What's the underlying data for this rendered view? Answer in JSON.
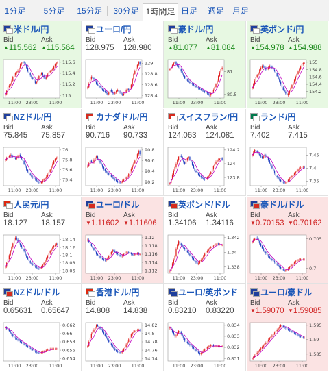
{
  "tabs": [
    {
      "label": "1分足",
      "active": false
    },
    {
      "label": "5分足",
      "active": false
    },
    {
      "label": "15分足",
      "active": false
    },
    {
      "label": "30分足",
      "active": false
    },
    {
      "label": "1時間足",
      "active": true
    },
    {
      "label": "日足",
      "active": false
    },
    {
      "label": "週足",
      "active": false
    },
    {
      "label": "月足",
      "active": false
    }
  ],
  "labels": {
    "bid": "Bid",
    "ask": "Ask"
  },
  "colors": {
    "up_bg": "#e7f8e2",
    "down_bg": "#fbe3e3",
    "up_text": "#1b8a1b",
    "down_text": "#d02424",
    "candle_up": "#e02020",
    "candle_down": "#1f3fc0",
    "ma": "#c000c0",
    "link": "#1a56b8"
  },
  "pairs": [
    {
      "name": "米ドル/円",
      "flag_icons": [
        "us-flag-icon",
        "jp-flag-icon"
      ],
      "flag_colors": [
        "#1f3f9c",
        "#ffffff"
      ],
      "bid": "115.562",
      "ask": "115.564",
      "trend": "up",
      "y_ticks": [
        "115.6",
        "115.4",
        "115.2",
        "115"
      ],
      "x_ticks": [
        "11:00",
        "23:00",
        "11:00"
      ],
      "series": [
        115.02,
        115.08,
        115.15,
        115.18,
        115.2,
        115.26,
        115.33,
        115.36,
        115.4,
        115.42,
        115.45,
        115.5,
        115.56,
        115.58,
        115.6,
        115.59,
        115.55,
        115.5,
        115.44,
        115.4,
        115.36,
        115.32,
        115.3,
        115.26,
        115.22,
        115.24,
        115.3,
        115.35,
        115.38,
        115.4,
        115.36,
        115.32,
        115.3,
        115.34,
        115.38,
        115.42,
        115.44,
        115.46,
        115.48,
        115.52,
        115.56,
        115.58,
        115.6
      ]
    },
    {
      "name": "ユーロ/円",
      "flag_icons": [
        "eu-flag-icon",
        "jp-flag-icon"
      ],
      "flag_colors": [
        "#1f3f9c",
        "#ffffff"
      ],
      "bid": "128.975",
      "ask": "128.980",
      "trend": "none",
      "y_ticks": [
        "129",
        "128.8",
        "128.6",
        "128.4"
      ],
      "x_ticks": [
        "11:00",
        "23:00",
        "11:00"
      ],
      "series": [
        128.55,
        128.62,
        128.7,
        128.75,
        128.72,
        128.7,
        128.66,
        128.62,
        128.6,
        128.57,
        128.55,
        128.52,
        128.5,
        128.48,
        128.46,
        128.44,
        128.42,
        128.45,
        128.5,
        128.47,
        128.44,
        128.43,
        128.45,
        128.48,
        128.5,
        128.47,
        128.45,
        128.42,
        128.41,
        128.43,
        128.46,
        128.5,
        128.52,
        128.5,
        128.54,
        128.6,
        128.7,
        128.8,
        128.86,
        128.92,
        128.97,
        129.02,
        128.98
      ]
    },
    {
      "name": "豪ドル/円",
      "flag_icons": [
        "au-flag-icon",
        "jp-flag-icon"
      ],
      "flag_colors": [
        "#1f3f9c",
        "#ffffff"
      ],
      "bid": "81.077",
      "ask": "81.084",
      "trend": "up",
      "y_ticks": [
        "81",
        "80.5"
      ],
      "x_ticks": [
        "11:00",
        "23:00",
        "11:00"
      ],
      "series": [
        81.05,
        81.1,
        81.14,
        81.18,
        81.2,
        81.16,
        81.12,
        81.1,
        81.05,
        81.0,
        80.95,
        80.9,
        80.85,
        80.82,
        80.8,
        80.78,
        80.75,
        80.74,
        80.72,
        80.7,
        80.68,
        80.66,
        80.65,
        80.63,
        80.62,
        80.6,
        80.58,
        80.57,
        80.55,
        80.54,
        80.52,
        80.5,
        80.48,
        80.52,
        80.56,
        80.6,
        80.66,
        80.72,
        80.8,
        80.9,
        80.98,
        81.05,
        81.08
      ]
    },
    {
      "name": "英ポンド/円",
      "flag_icons": [
        "uk-flag-icon",
        "jp-flag-icon"
      ],
      "flag_colors": [
        "#1f3f9c",
        "#ffffff"
      ],
      "bid": "154.978",
      "ask": "154.988",
      "trend": "up",
      "y_ticks": [
        "155",
        "154.8",
        "154.6",
        "154.4",
        "154.2"
      ],
      "x_ticks": [
        "11:00",
        "23:00",
        "11:00"
      ],
      "series": [
        154.3,
        154.4,
        154.5,
        154.6,
        154.65,
        154.7,
        154.8,
        154.85,
        154.9,
        154.88,
        154.85,
        154.8,
        154.82,
        154.86,
        154.9,
        154.88,
        154.84,
        154.8,
        154.76,
        154.7,
        154.62,
        154.55,
        154.48,
        154.4,
        154.32,
        154.25,
        154.2,
        154.15,
        154.1,
        154.15,
        154.22,
        154.3,
        154.38,
        154.45,
        154.52,
        154.6,
        154.68,
        154.75,
        154.82,
        154.88,
        154.94,
        154.98,
        154.98
      ]
    },
    {
      "name": "NZドル/円",
      "flag_icons": [
        "nz-flag-icon",
        "jp-flag-icon"
      ],
      "flag_colors": [
        "#1f3f9c",
        "#ffffff"
      ],
      "bid": "75.845",
      "ask": "75.857",
      "trend": "none",
      "y_ticks": [
        "76",
        "75.8",
        "75.6",
        "75.4"
      ],
      "x_ticks": [
        "11:00",
        "23:00",
        "11:00"
      ],
      "series": [
        75.8,
        75.84,
        75.86,
        75.88,
        75.9,
        75.88,
        75.86,
        75.84,
        75.82,
        75.85,
        75.88,
        75.9,
        75.86,
        75.82,
        75.78,
        75.72,
        75.66,
        75.6,
        75.56,
        75.52,
        75.5,
        75.46,
        75.44,
        75.42,
        75.4,
        75.38,
        75.36,
        75.34,
        75.33,
        75.35,
        75.38,
        75.4,
        75.43,
        75.46,
        75.5,
        75.55,
        75.6,
        75.66,
        75.72,
        75.78,
        75.82,
        75.84,
        75.85
      ]
    },
    {
      "name": "カナダドル/円",
      "flag_icons": [
        "ca-flag-icon",
        "jp-flag-icon"
      ],
      "flag_colors": [
        "#d52b1e",
        "#ffffff"
      ],
      "bid": "90.716",
      "ask": "90.733",
      "trend": "none",
      "y_ticks": [
        "90.8",
        "90.6",
        "90.4",
        "90.2"
      ],
      "x_ticks": [
        "11:00",
        "23:00",
        "11:00"
      ],
      "series": [
        90.5,
        90.55,
        90.6,
        90.58,
        90.56,
        90.62,
        90.66,
        90.68,
        90.64,
        90.6,
        90.56,
        90.52,
        90.48,
        90.44,
        90.4,
        90.38,
        90.36,
        90.34,
        90.32,
        90.3,
        90.28,
        90.26,
        90.24,
        90.22,
        90.2,
        90.19,
        90.18,
        90.2,
        90.22,
        90.24,
        90.26,
        90.28,
        90.3,
        90.35,
        90.4,
        90.45,
        90.5,
        90.55,
        90.6,
        90.66,
        90.72,
        90.78,
        90.72
      ]
    },
    {
      "name": "スイスフラン/円",
      "flag_icons": [
        "ch-flag-icon",
        "jp-flag-icon"
      ],
      "flag_colors": [
        "#d52b1e",
        "#ffffff"
      ],
      "bid": "124.063",
      "ask": "124.081",
      "trend": "none",
      "y_ticks": [
        "124.2",
        "124",
        "123.8"
      ],
      "x_ticks": [
        "11:00",
        "23:00",
        "11:00"
      ],
      "series": [
        123.72,
        123.78,
        123.84,
        123.9,
        123.95,
        124.0,
        124.05,
        124.1,
        124.12,
        124.1,
        124.06,
        124.02,
        124.0,
        124.05,
        124.08,
        124.1,
        124.06,
        124.02,
        123.98,
        123.94,
        123.9,
        123.88,
        123.86,
        123.84,
        123.82,
        123.8,
        123.79,
        123.78,
        123.77,
        123.78,
        123.8,
        123.82,
        123.85,
        123.88,
        123.92,
        123.96,
        124.0,
        124.03,
        124.05,
        124.06,
        124.07,
        124.08,
        124.06
      ]
    },
    {
      "name": "ランド/円",
      "flag_icons": [
        "za-flag-icon",
        "jp-flag-icon"
      ],
      "flag_colors": [
        "#007a4d",
        "#ffffff"
      ],
      "bid": "7.402",
      "ask": "7.415",
      "trend": "none",
      "y_ticks": [
        "7.45",
        "7.4",
        "7.35"
      ],
      "x_ticks": [
        "11:00",
        "23:00",
        "11:00"
      ],
      "series": [
        7.45,
        7.46,
        7.47,
        7.465,
        7.46,
        7.455,
        7.45,
        7.445,
        7.44,
        7.445,
        7.45,
        7.445,
        7.44,
        7.43,
        7.42,
        7.41,
        7.4,
        7.39,
        7.38,
        7.37,
        7.365,
        7.36,
        7.355,
        7.35,
        7.348,
        7.345,
        7.343,
        7.345,
        7.35,
        7.355,
        7.36,
        7.365,
        7.37,
        7.375,
        7.38,
        7.385,
        7.39,
        7.395,
        7.4,
        7.402,
        7.404,
        7.405,
        7.402
      ]
    },
    {
      "name": "人民元/円",
      "flag_icons": [
        "cn-flag-icon",
        "jp-flag-icon"
      ],
      "flag_colors": [
        "#de2910",
        "#ffffff"
      ],
      "bid": "18.127",
      "ask": "18.157",
      "trend": "none",
      "y_ticks": [
        "18.14",
        "18.12",
        "18.1",
        "18.08",
        "18.06"
      ],
      "x_ticks": [
        "11:00",
        "23:00",
        "11:00"
      ],
      "series": [
        18.07,
        18.08,
        18.09,
        18.1,
        18.11,
        18.12,
        18.13,
        18.14,
        18.145,
        18.14,
        18.135,
        18.13,
        18.125,
        18.12,
        18.115,
        18.11,
        18.1,
        18.095,
        18.09,
        18.085,
        18.08,
        18.078,
        18.075,
        18.072,
        18.07,
        18.068,
        18.066,
        18.065,
        18.067,
        18.07,
        18.075,
        18.08,
        18.086,
        18.092,
        18.098,
        18.104,
        18.11,
        18.115,
        18.12,
        18.124,
        18.127,
        18.13,
        18.127
      ]
    },
    {
      "name": "ユーロ/ドル",
      "flag_icons": [
        "eu-flag-icon",
        "us-flag-icon"
      ],
      "flag_colors": [
        "#1f3f9c",
        "#d52b1e"
      ],
      "bid": "1.11602",
      "ask": "1.11606",
      "trend": "down",
      "y_ticks": [
        "1.12",
        "1.118",
        "1.116",
        "1.114",
        "1.112"
      ],
      "x_ticks": [
        "11:00",
        "23:00",
        "11:00"
      ],
      "series": [
        1.1195,
        1.119,
        1.1185,
        1.118,
        1.1175,
        1.117,
        1.1165,
        1.116,
        1.1158,
        1.1155,
        1.1152,
        1.115,
        1.1148,
        1.1146,
        1.1145,
        1.1147,
        1.115,
        1.1155,
        1.116,
        1.1165,
        1.117,
        1.1168,
        1.1165,
        1.1162,
        1.116,
        1.1158,
        1.1156,
        1.1155,
        1.1157,
        1.116,
        1.1162,
        1.1164,
        1.1165,
        1.1164,
        1.1162,
        1.116,
        1.1159,
        1.1158,
        1.116,
        1.1161,
        1.1162,
        1.116,
        1.116
      ]
    },
    {
      "name": "英ポンド/ドル",
      "flag_icons": [
        "uk-flag-icon",
        "us-flag-icon"
      ],
      "flag_colors": [
        "#1f3f9c",
        "#d52b1e"
      ],
      "bid": "1.34106",
      "ask": "1.34116",
      "trend": "none",
      "y_ticks": [
        "1.342",
        "1.34",
        "1.338"
      ],
      "x_ticks": [
        "11:00",
        "23:00",
        "11:00"
      ],
      "series": [
        1.3375,
        1.338,
        1.3385,
        1.339,
        1.3395,
        1.3405,
        1.341,
        1.3415,
        1.3412,
        1.341,
        1.3408,
        1.3406,
        1.3404,
        1.3402,
        1.34,
        1.3398,
        1.3396,
        1.3394,
        1.3392,
        1.339,
        1.3388,
        1.3386,
        1.3384,
        1.3385,
        1.3388,
        1.339,
        1.3392,
        1.3395,
        1.3398,
        1.34,
        1.3402,
        1.3404,
        1.3406,
        1.3407,
        1.3408,
        1.3409,
        1.341,
        1.3411,
        1.3412,
        1.3411,
        1.3411,
        1.341,
        1.341
      ]
    },
    {
      "name": "豪ドル/ドル",
      "flag_icons": [
        "au-flag-icon",
        "us-flag-icon"
      ],
      "flag_colors": [
        "#1f3f9c",
        "#d52b1e"
      ],
      "bid": "0.70153",
      "ask": "0.70162",
      "trend": "down",
      "y_ticks": [
        "0.705",
        "0.7"
      ],
      "x_ticks": [
        "11:00",
        "23:00",
        "11:00"
      ],
      "series": [
        0.7045,
        0.7048,
        0.705,
        0.7052,
        0.705,
        0.7046,
        0.7042,
        0.7038,
        0.7034,
        0.703,
        0.7028,
        0.7025,
        0.7022,
        0.702,
        0.7018,
        0.7016,
        0.7014,
        0.7012,
        0.701,
        0.7008,
        0.7006,
        0.7004,
        0.7002,
        0.7,
        0.6998,
        0.6997,
        0.6996,
        0.6997,
        0.6998,
        0.7,
        0.7002,
        0.7004,
        0.7006,
        0.7008,
        0.701,
        0.7012,
        0.7013,
        0.7014,
        0.7015,
        0.7016,
        0.7015,
        0.7015,
        0.7015
      ]
    },
    {
      "name": "NZドル/ドル",
      "flag_icons": [
        "nz-flag-icon",
        "us-flag-icon"
      ],
      "flag_colors": [
        "#1f3f9c",
        "#d52b1e"
      ],
      "bid": "0.65631",
      "ask": "0.65647",
      "trend": "none",
      "y_ticks": [
        "0.662",
        "0.66",
        "0.658",
        "0.656",
        "0.654"
      ],
      "x_ticks": [
        "11:00",
        "23:00",
        "11:00"
      ],
      "series": [
        0.6615,
        0.6612,
        0.661,
        0.6606,
        0.6602,
        0.6598,
        0.6594,
        0.659,
        0.6588,
        0.6586,
        0.6584,
        0.6582,
        0.658,
        0.6578,
        0.6576,
        0.6574,
        0.6572,
        0.657,
        0.6568,
        0.6566,
        0.6564,
        0.6562,
        0.656,
        0.6558,
        0.6556,
        0.6555,
        0.6554,
        0.6553,
        0.6554,
        0.6555,
        0.6556,
        0.6557,
        0.6558,
        0.656,
        0.6561,
        0.6562,
        0.6563,
        0.6563,
        0.6563,
        0.6563,
        0.6563,
        0.6563,
        0.6563
      ]
    },
    {
      "name": "香港ドル/円",
      "flag_icons": [
        "hk-flag-icon",
        "jp-flag-icon"
      ],
      "flag_colors": [
        "#de2910",
        "#ffffff"
      ],
      "bid": "14.808",
      "ask": "14.838",
      "trend": "none",
      "y_ticks": [
        "14.82",
        "14.8",
        "14.78",
        "14.76",
        "14.74"
      ],
      "x_ticks": [
        "11:00",
        "23:00",
        "11:00"
      ],
      "series": [
        14.77,
        14.78,
        14.79,
        14.8,
        14.805,
        14.81,
        14.815,
        14.82,
        14.818,
        14.815,
        14.812,
        14.81,
        14.805,
        14.8,
        14.795,
        14.79,
        14.785,
        14.78,
        14.776,
        14.772,
        14.768,
        14.764,
        14.76,
        14.758,
        14.756,
        14.755,
        14.754,
        14.755,
        14.758,
        14.762,
        14.768,
        14.774,
        14.78,
        14.786,
        14.792,
        14.798,
        14.802,
        14.805,
        14.807,
        14.808,
        14.809,
        14.809,
        14.808
      ]
    },
    {
      "name": "ユーロ/英ポンド",
      "flag_icons": [
        "eu-flag-icon",
        "uk-flag-icon"
      ],
      "flag_colors": [
        "#1f3f9c",
        "#1f3f9c"
      ],
      "bid": "0.83210",
      "ask": "0.83220",
      "trend": "none",
      "y_ticks": [
        "0.834",
        "0.833",
        "0.832",
        "0.831"
      ],
      "x_ticks": [
        "11:00",
        "23:00",
        "11:00"
      ],
      "series": [
        0.8338,
        0.8336,
        0.8334,
        0.8332,
        0.833,
        0.8331,
        0.8333,
        0.8335,
        0.8334,
        0.8332,
        0.833,
        0.8328,
        0.8326,
        0.8325,
        0.8324,
        0.8323,
        0.8322,
        0.8321,
        0.832,
        0.8319,
        0.8318,
        0.8317,
        0.8316,
        0.8315,
        0.8314,
        0.8315,
        0.8316,
        0.8317,
        0.8318,
        0.8319,
        0.832,
        0.8321,
        0.8321,
        0.8322,
        0.8322,
        0.8321,
        0.8321,
        0.8321,
        0.8321,
        0.8321,
        0.8321,
        0.8321,
        0.8321
      ]
    },
    {
      "name": "ユーロ/豪ドル",
      "flag_icons": [
        "eu-flag-icon",
        "au-flag-icon"
      ],
      "flag_colors": [
        "#1f3f9c",
        "#1f3f9c"
      ],
      "bid": "1.59070",
      "ask": "1.59085",
      "trend": "down",
      "y_ticks": [
        "1.595",
        "1.59",
        "1.585"
      ],
      "x_ticks": [
        "11:00",
        "23:00",
        "11:00"
      ],
      "series": [
        1.5835,
        1.584,
        1.5845,
        1.585,
        1.5855,
        1.586,
        1.5865,
        1.587,
        1.5875,
        1.588,
        1.5885,
        1.589,
        1.5895,
        1.59,
        1.5905,
        1.591,
        1.5915,
        1.592,
        1.5925,
        1.593,
        1.5935,
        1.594,
        1.5945,
        1.595,
        1.5948,
        1.5945,
        1.5942,
        1.594,
        1.5938,
        1.5935,
        1.5932,
        1.593,
        1.5928,
        1.5925,
        1.5922,
        1.592,
        1.5918,
        1.5915,
        1.5912,
        1.591,
        1.5908,
        1.5907,
        1.5907
      ]
    }
  ]
}
